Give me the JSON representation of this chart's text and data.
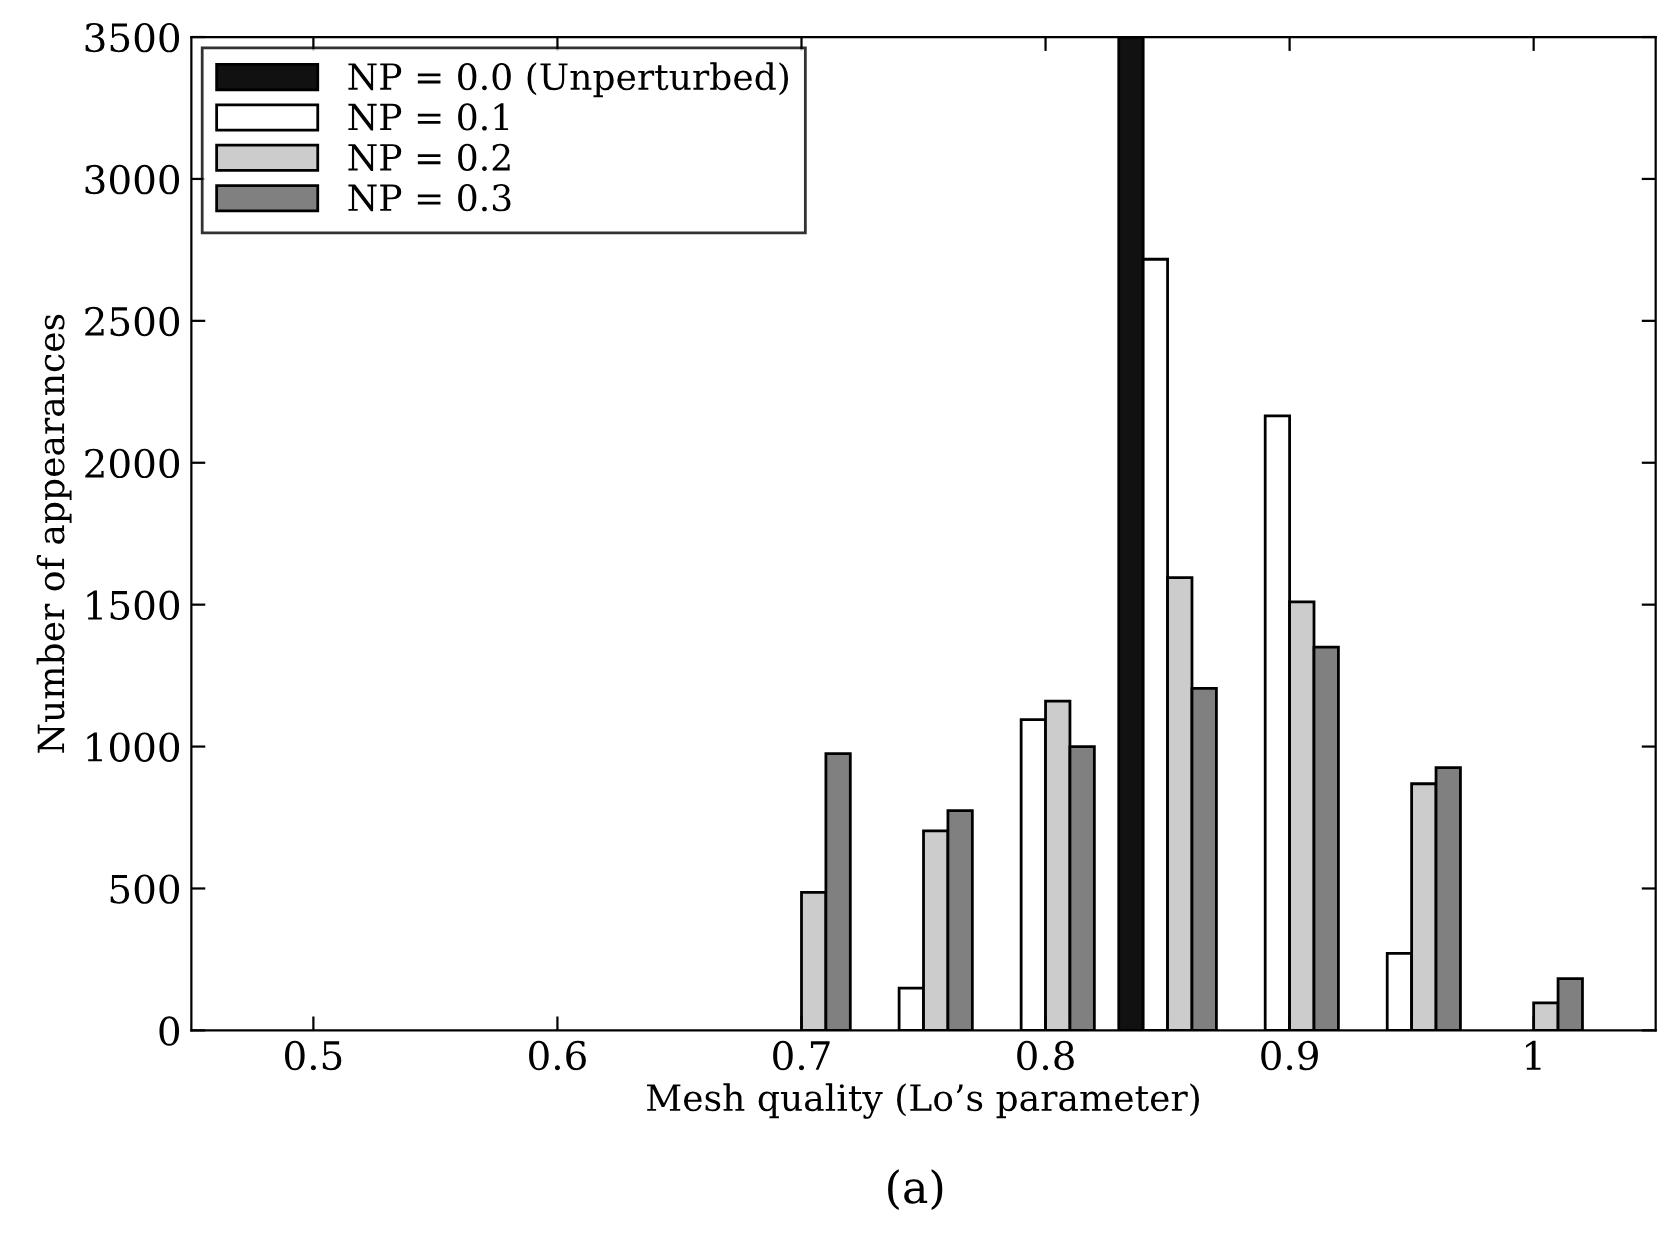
{
  "chart_data": {
    "type": "bar",
    "xlabel": "Mesh quality (Lo’s parameter)",
    "ylabel": "Number of appearances",
    "annotations": [
      "(a)"
    ],
    "x": [
      0.7,
      0.75,
      0.8,
      0.85,
      0.9,
      0.95,
      1
    ],
    "series": [
      {
        "name": "NP = 0.0 (Unperturbed)",
        "color": "#111111",
        "values": [
          null,
          null,
          null,
          3500,
          null,
          null,
          null
        ]
      },
      {
        "name": "NP = 0.1",
        "color": "#ffffff",
        "values": [
          null,
          149,
          1095,
          2717,
          2165,
          271,
          null
        ]
      },
      {
        "name": "NP = 0.2",
        "color": "#cccccc",
        "values": [
          486,
          703,
          1160,
          1595,
          1510,
          869,
          97
        ]
      },
      {
        "name": "NP = 0.3",
        "color": "#808080",
        "values": [
          975,
          774,
          1000,
          1205,
          1350,
          926,
          182
        ]
      }
    ],
    "xlim": [
      0.45,
      1.05
    ],
    "xticks": [
      0.5,
      0.6,
      0.7,
      0.8,
      0.9,
      1
    ],
    "ylim": [
      0,
      3500
    ],
    "yticks": [
      0,
      500,
      1000,
      1500,
      2000,
      2500,
      3000,
      3500
    ],
    "grid": false,
    "legend": "top left"
  }
}
